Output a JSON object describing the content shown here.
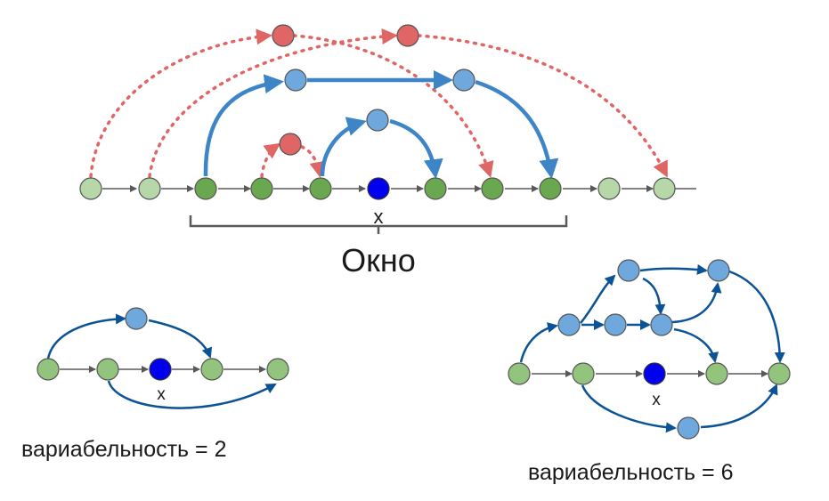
{
  "top_diagram": {
    "center_label": "x",
    "window_label": "Окно"
  },
  "left_diagram": {
    "center_label": "x",
    "caption": "вариабельность = 2"
  },
  "right_diagram": {
    "center_label": "x",
    "caption": "вариабельность = 6"
  },
  "colors": {
    "green_light": "#b6d7a8",
    "green": "#6aa84f",
    "green_small": "#93c47d",
    "blue_node": "#6fa8dc",
    "center_node": "#0000ee",
    "red_node": "#e06666",
    "blue_edge": "#3d85c6",
    "dark_blue_edge": "#0b5394",
    "red_edge": "#e06666",
    "chain_edge": "#595959"
  }
}
